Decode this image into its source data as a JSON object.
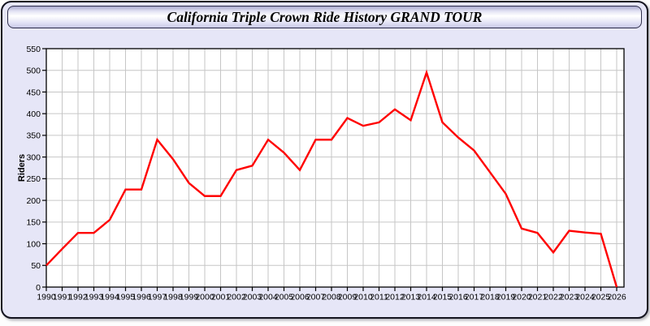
{
  "window": {
    "title": "California Triple Crown Ride History GRAND TOUR"
  },
  "colors": {
    "line": "#ff0000",
    "panel_background": "#e6e6f7",
    "plot_background": "#ffffff",
    "grid": "#c6c6c6",
    "axis": "#000000",
    "tick_text": "#000000"
  },
  "chart_data": {
    "type": "line",
    "title": "California Triple Crown Ride History GRAND TOUR",
    "xlabel": "",
    "ylabel": "Riders",
    "ylim": [
      0,
      550
    ],
    "ytick_interval": 50,
    "xtick_interval": 1,
    "grid": true,
    "legend_position": "none",
    "x": [
      1990,
      1991,
      1992,
      1993,
      1994,
      1995,
      1996,
      1997,
      1998,
      1999,
      2000,
      2001,
      2002,
      2003,
      2004,
      2005,
      2006,
      2007,
      2008,
      2009,
      2010,
      2011,
      2012,
      2013,
      2014,
      2015,
      2016,
      2017,
      2018,
      2019,
      2020,
      2021,
      2022,
      2023,
      2024,
      2025,
      2026
    ],
    "series": [
      {
        "name": "Riders",
        "color": "#ff0000",
        "values": [
          50,
          88,
          125,
          125,
          155,
          225,
          225,
          340,
          295,
          240,
          210,
          210,
          270,
          280,
          340,
          310,
          270,
          340,
          340,
          390,
          372,
          380,
          410,
          385,
          495,
          380,
          345,
          315,
          265,
          215,
          135,
          125,
          80,
          130,
          126,
          123,
          0
        ]
      }
    ]
  }
}
